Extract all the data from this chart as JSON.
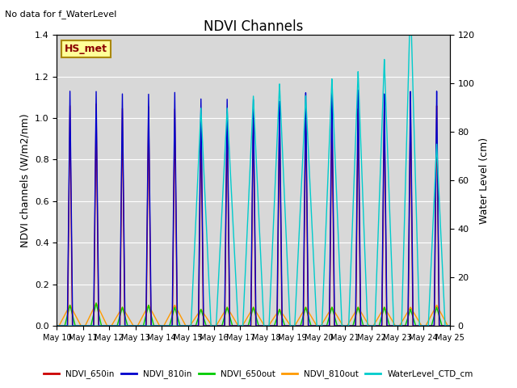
{
  "title": "NDVI Channels",
  "subtitle": "No data for f_WaterLevel",
  "ylabel_left": "NDVI channels (W/m2/nm)",
  "ylabel_right": "Water Level (cm)",
  "site_label": "HS_met",
  "ylim_left": [
    0,
    1.4
  ],
  "ylim_right": [
    0,
    120
  ],
  "xtick_labels": [
    "May 10",
    "May 11",
    "May 12",
    "May 13",
    "May 14",
    "May 15",
    "May 16",
    "May 17",
    "May 18",
    "May 19",
    "May 20",
    "May 21",
    "May 22",
    "May 23",
    "May 24",
    "May 25"
  ],
  "colors": {
    "NDVI_650in": "#cc0000",
    "NDVI_810in": "#0000cc",
    "NDVI_650out": "#00cc00",
    "NDVI_810out": "#ff9900",
    "WaterLevel_CTD_cm": "#00cccc"
  },
  "bg_color": "#d8d8d8",
  "peak_days": [
    0.5,
    1.5,
    2.5,
    3.5,
    4.5,
    5.5,
    6.5,
    7.5,
    8.5,
    9.5,
    10.5,
    11.5,
    12.5,
    13.5,
    14.5
  ],
  "ndvi_650in_peaks": [
    1.06,
    1.07,
    1.05,
    1.06,
    1.05,
    1.01,
    1.04,
    1.04,
    1.03,
    1.04,
    1.05,
    1.05,
    1.05,
    1.06,
    1.06
  ],
  "ndvi_810in_peaks": [
    1.13,
    1.13,
    1.12,
    1.12,
    1.13,
    1.1,
    1.1,
    1.1,
    1.09,
    1.13,
    1.13,
    1.14,
    1.12,
    1.13,
    1.13
  ],
  "ndvi_650out_peaks": [
    0.1,
    0.11,
    0.09,
    0.1,
    0.09,
    0.08,
    0.09,
    0.09,
    0.08,
    0.09,
    0.09,
    0.09,
    0.09,
    0.08,
    0.09
  ],
  "ndvi_810out_peaks": [
    0.1,
    0.11,
    0.09,
    0.1,
    0.1,
    0.08,
    0.09,
    0.09,
    0.08,
    0.09,
    0.09,
    0.09,
    0.09,
    0.09,
    0.1
  ],
  "water_level_peaks": [
    0,
    0,
    0,
    0,
    0,
    90,
    90,
    95,
    100,
    95,
    102,
    105,
    110,
    135,
    75
  ],
  "water_level_widths": [
    0,
    0,
    0,
    0,
    0,
    0.38,
    0.42,
    0.4,
    0.4,
    0.42,
    0.38,
    0.36,
    0.36,
    0.34,
    0.32
  ]
}
